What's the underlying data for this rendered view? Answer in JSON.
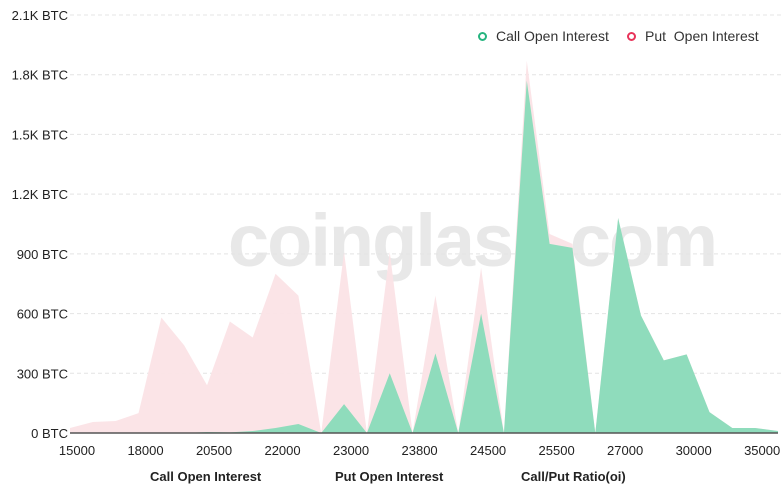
{
  "chart_data": {
    "type": "area",
    "title": "",
    "xlabel": "",
    "ylabel": "",
    "ylim": [
      0,
      2100
    ],
    "y_ticks": [
      "0 BTC",
      "300 BTC",
      "600 BTC",
      "900 BTC",
      "1.2K BTC",
      "1.5K BTC",
      "1.8K BTC",
      "2.1K BTC"
    ],
    "x_tick_labels": [
      "15000",
      "18000",
      "20500",
      "22000",
      "23000",
      "23800",
      "24500",
      "25500",
      "27000",
      "30000",
      "35000"
    ],
    "grid": true,
    "legend_position": "top-right",
    "series": [
      {
        "name": "Call Open Interest",
        "color": "#8fdcbc",
        "marker_color": "#26b47f",
        "values": [
          0,
          0,
          0,
          0,
          0,
          0,
          5,
          3,
          10,
          25,
          45,
          0,
          145,
          0,
          300,
          0,
          400,
          0,
          600,
          0,
          1770,
          950,
          930,
          0,
          1080,
          590,
          365,
          395,
          105,
          25,
          25,
          10
        ]
      },
      {
        "name": "Put  Open Interest",
        "color": "#fbe3e6",
        "marker_color": "#e8345a",
        "values": [
          25,
          55,
          60,
          100,
          580,
          440,
          240,
          560,
          480,
          800,
          690,
          0,
          910,
          0,
          910,
          0,
          690,
          0,
          830,
          0,
          1870,
          1000,
          950,
          0,
          1080,
          590,
          365,
          395,
          105,
          25,
          25,
          10
        ]
      }
    ]
  },
  "tabs": [
    "Call Open Interest",
    "Put Open Interest",
    "Call/Put Ratio(oi)"
  ],
  "watermark": "coinglass.com"
}
